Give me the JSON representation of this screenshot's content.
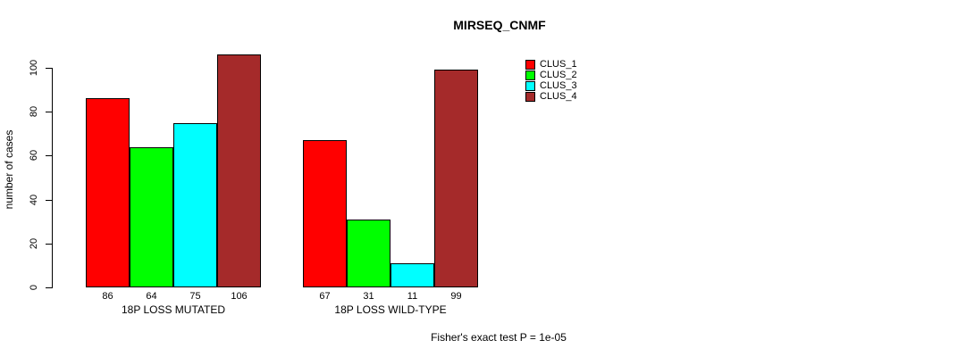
{
  "title": "MIRSEQ_CNMF",
  "y_axis": {
    "label": "number of cases",
    "ticks": [
      0,
      20,
      40,
      60,
      80,
      100
    ]
  },
  "legend": {
    "items": [
      {
        "label": "CLUS_1",
        "color": "#FF0000"
      },
      {
        "label": "CLUS_2",
        "color": "#00FF00"
      },
      {
        "label": "CLUS_3",
        "color": "#00FFFF"
      },
      {
        "label": "CLUS_4",
        "color": "#A52A2A"
      }
    ]
  },
  "footer": "Fisher's exact test P = 1e-05",
  "chart_data": {
    "type": "bar",
    "title": "MIRSEQ_CNMF",
    "xlabel": "",
    "ylabel": "number of cases",
    "ylim": [
      0,
      106
    ],
    "yticks": [
      0,
      20,
      40,
      60,
      80,
      100
    ],
    "categories": [
      "18P LOSS MUTATED",
      "18P LOSS WILD-TYPE"
    ],
    "series": [
      {
        "name": "CLUS_1",
        "color": "#FF0000",
        "values": [
          86,
          67
        ]
      },
      {
        "name": "CLUS_2",
        "color": "#00FF00",
        "values": [
          64,
          31
        ]
      },
      {
        "name": "CLUS_3",
        "color": "#00FFFF",
        "values": [
          75,
          11
        ]
      },
      {
        "name": "CLUS_4",
        "color": "#A52A2A",
        "values": [
          106,
          99
        ]
      }
    ],
    "bar_value_labels": [
      [
        86,
        64,
        75,
        106
      ],
      [
        67,
        31,
        11,
        99
      ]
    ],
    "annotation": "Fisher's exact test P = 1e-05",
    "legend_position": "top-right",
    "grid": false,
    "background": "#ffffff"
  }
}
